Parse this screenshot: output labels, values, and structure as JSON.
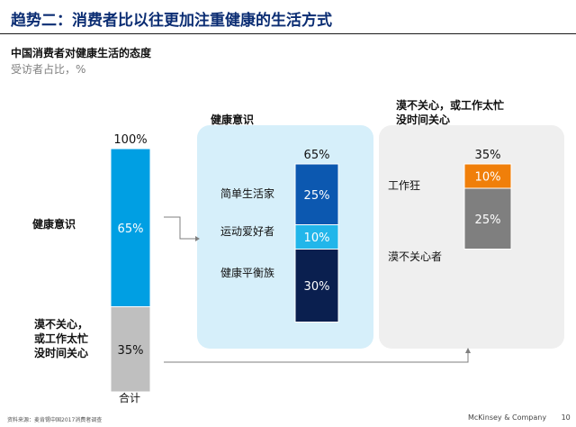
{
  "header": {
    "title": "趋势二：消费者比以往更加注重健康的生活方式",
    "subtitle": "中国消费者对健康生活的态度",
    "unit": "受访者占比，%"
  },
  "chart_data": {
    "type": "bar",
    "stacked": true,
    "unit": "%",
    "bars": [
      {
        "category": "合计",
        "total_label": "100%",
        "segments": [
          {
            "name": "健康意识",
            "value": 65,
            "label": "65%",
            "color": "#009fe3"
          },
          {
            "name": "漠不关心，或工作太忙没时间关心",
            "value": 35,
            "label": "35%",
            "color": "#bfbfbf"
          }
        ]
      },
      {
        "category": "健康意识",
        "total_label": "65%",
        "segments": [
          {
            "name": "简单生活家",
            "value": 25,
            "label": "25%",
            "color": "#0c58b0"
          },
          {
            "name": "运动爱好者",
            "value": 10,
            "label": "10%",
            "color": "#22b6ea"
          },
          {
            "name": "健康平衡族",
            "value": 30,
            "label": "30%",
            "color": "#0a1f4f"
          }
        ]
      },
      {
        "category": "漠不关心，或工作太忙没时间关心",
        "total_label": "35%",
        "segments": [
          {
            "name": "工作狂",
            "value": 10,
            "label": "10%",
            "color": "#f07f0a"
          },
          {
            "name": "漠不关心者",
            "value": 25,
            "label": "25%",
            "color": "#7f7f7f"
          }
        ]
      }
    ]
  },
  "labels": {
    "left_health": "健康意识",
    "left_indiff_1": "漠不关心，",
    "left_indiff_2": "或工作太忙",
    "left_indiff_3": "没时间关心",
    "x_total": "合计",
    "panel_health_title": "健康意识",
    "panel_indiff_title_1": "漠不关心，或工作太忙",
    "panel_indiff_title_2": "没时间关心"
  },
  "footer": {
    "source": "资料来源：麦肯锡中国2017消费者调查",
    "brand": "McKinsey & Company",
    "page": "10"
  }
}
